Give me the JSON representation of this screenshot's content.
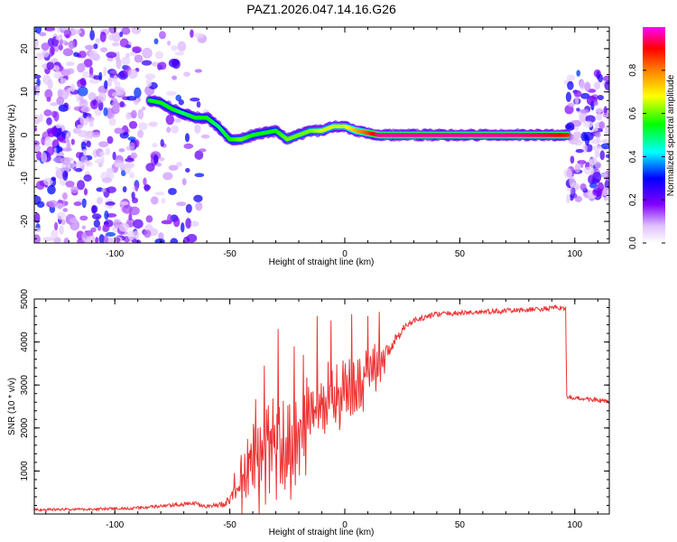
{
  "figure": {
    "title": "PAZ1.2026.047.14.16.G26"
  },
  "chart_data": [
    {
      "type": "heatmap",
      "title": "PAZ1.2026.047.14.16.G26",
      "xlabel": "Height of straight line (km)",
      "ylabel": "Frequency (Hz)",
      "xlim": [
        -135,
        115
      ],
      "ylim": [
        -25,
        25
      ],
      "x_ticks": [
        -100,
        -50,
        0,
        50,
        100
      ],
      "y_ticks": [
        -20,
        -10,
        0,
        10,
        20
      ],
      "colorbar": {
        "label": "Normalized spectral amplitude",
        "range": [
          0,
          1
        ],
        "ticks": [
          "0.0",
          "0.2",
          "0.4",
          "0.6",
          "0.8"
        ],
        "tick_values": [
          0.0,
          0.2,
          0.4,
          0.6,
          0.8
        ],
        "colors": [
          "#ffffff",
          "#8000ff",
          "#0000ff",
          "#00ffff",
          "#00ff00",
          "#ffff00",
          "#ff8000",
          "#ff0000",
          "#ff00ff"
        ]
      },
      "ridge": {
        "x": [
          -85,
          -80,
          -75,
          -70,
          -65,
          -60,
          -55,
          -50,
          -45,
          -40,
          -35,
          -30,
          -25,
          -20,
          -15,
          -10,
          -5,
          0,
          5,
          10,
          15,
          30,
          50,
          70,
          90,
          97
        ],
        "y": [
          8,
          7.5,
          6,
          5,
          4,
          4,
          2,
          -1,
          -1,
          0,
          0.5,
          1,
          -1,
          0,
          1,
          1,
          2,
          2,
          1,
          0.5,
          0,
          0,
          0,
          0,
          0,
          0
        ],
        "value": [
          0.5,
          0.5,
          0.5,
          0.45,
          0.5,
          0.5,
          0.45,
          0.5,
          0.55,
          0.5,
          0.5,
          0.5,
          0.55,
          0.55,
          0.55,
          0.6,
          0.6,
          0.6,
          0.7,
          0.8,
          0.95,
          0.95,
          0.95,
          0.95,
          0.9,
          0.85
        ]
      },
      "noise_regions": [
        {
          "x": [
            -135,
            -90
          ],
          "y": [
            -25,
            25
          ],
          "density": 1.0
        },
        {
          "x": [
            -90,
            -60
          ],
          "y": [
            -25,
            25
          ],
          "density": 0.35
        },
        {
          "x": [
            97,
            115
          ],
          "y": [
            -15,
            15
          ],
          "density": 0.8
        }
      ]
    },
    {
      "type": "line",
      "xlabel": "Height of straight line (km)",
      "ylabel": "SNR (10 * v/v)",
      "xlim": [
        -135,
        115
      ],
      "ylim": [
        0,
        5000
      ],
      "x_ticks": [
        -100,
        -50,
        0,
        50,
        100
      ],
      "y_ticks": [
        1000,
        2000,
        3000,
        4000,
        5000
      ],
      "color": "#ee3333",
      "series": [
        {
          "name": "SNR",
          "x": [
            -135,
            -110,
            -90,
            -75,
            -65,
            -60,
            -55,
            -50,
            -47,
            -43,
            -40,
            -37,
            -34,
            -30,
            -25,
            -20,
            -15,
            -10,
            -5,
            0,
            5,
            10,
            15,
            20,
            25,
            30,
            40,
            60,
            80,
            95,
            96,
            96.5,
            100,
            110,
            115
          ],
          "mean": [
            100,
            110,
            140,
            200,
            250,
            180,
            200,
            300,
            600,
            900,
            1500,
            1300,
            1700,
            1500,
            1300,
            1600,
            2400,
            2500,
            2700,
            2700,
            2900,
            3300,
            3500,
            3900,
            4300,
            4500,
            4650,
            4700,
            4750,
            4800,
            4800,
            2700,
            2700,
            2650,
            2600
          ],
          "spread": [
            60,
            60,
            70,
            90,
            100,
            80,
            120,
            250,
            500,
            900,
            1100,
            1300,
            1200,
            1300,
            1200,
            1200,
            900,
            900,
            800,
            800,
            700,
            600,
            500,
            300,
            200,
            150,
            120,
            120,
            120,
            120,
            120,
            100,
            100,
            100,
            100
          ],
          "peaks_x": [
            -35,
            -29,
            -22,
            -18,
            -12,
            -6,
            3,
            10,
            15
          ],
          "peaks_y": [
            3450,
            4300,
            3900,
            3700,
            4600,
            4500,
            4650,
            4600,
            4700
          ]
        }
      ]
    }
  ]
}
